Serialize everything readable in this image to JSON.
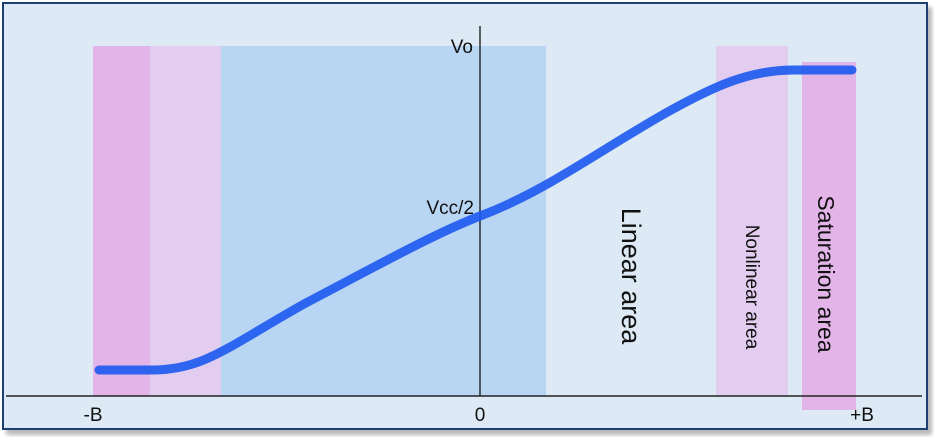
{
  "diagram": {
    "y_axis_label": "Vo",
    "midpoint_label": "Vcc/2",
    "x_tick_left": "-B",
    "x_tick_center": "0",
    "x_tick_right": "+B",
    "region_linear": "Linear area",
    "region_nonlinear": "Nonlinear  area",
    "region_saturation": "Saturation  area"
  },
  "colors": {
    "background": "#dde9f4",
    "border": "#1f3f73",
    "linear_region": "#b9d5f4",
    "nonlinear_region": "#e2cdf0",
    "saturation_region": "#e3b4e8",
    "curve": "#1f5bef",
    "axis": "#222222"
  }
}
